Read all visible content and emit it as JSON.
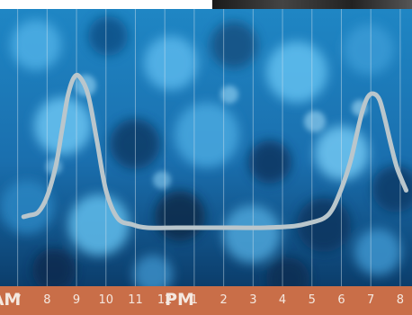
{
  "colors": {
    "background_top": "#1f86c4",
    "background_bottom": "#0b3d6b",
    "curve": "#b9c6cc",
    "gridline": "#d8e6ee",
    "axis_bar": "#c96e48",
    "axis_text": "#f4e8e0"
  },
  "chart_data": {
    "type": "line",
    "title": "",
    "xlabel": "",
    "ylabel": "",
    "grid": "vertical lines at each hour",
    "x_tick_labels": [
      "AM",
      "7",
      "8",
      "9",
      "10",
      "11",
      "12",
      "PM",
      "1",
      "2",
      "3",
      "4",
      "5",
      "6",
      "7",
      "8"
    ],
    "x_hours": [
      6.2,
      6.6,
      7.6,
      8.6,
      9.6,
      10.6,
      11.6,
      12.1,
      12.6,
      13.6,
      14.6,
      15.6,
      16.6,
      17.6,
      18.6,
      19.6
    ],
    "xlim": [
      6,
      20
    ],
    "ylim": [
      0,
      1
    ],
    "series": [
      {
        "x": [
          6.8,
          7.0,
          7.3,
          7.6,
          7.9,
          8.1,
          8.3,
          8.5,
          8.7,
          9.0,
          9.3,
          9.6,
          10.0,
          10.5,
          11.0,
          12.0,
          13.0,
          14.0,
          15.0,
          16.0,
          16.5,
          17.0,
          17.3,
          17.6,
          17.9,
          18.1,
          18.3,
          18.5,
          18.7,
          18.9,
          19.1,
          19.3,
          19.5,
          19.8
        ],
        "y": [
          0.07,
          0.08,
          0.1,
          0.2,
          0.4,
          0.62,
          0.84,
          0.96,
          0.97,
          0.85,
          0.55,
          0.24,
          0.06,
          0.02,
          0.0,
          0.0,
          0.0,
          0.0,
          0.0,
          0.01,
          0.03,
          0.06,
          0.12,
          0.25,
          0.42,
          0.58,
          0.74,
          0.84,
          0.86,
          0.82,
          0.68,
          0.52,
          0.38,
          0.24
        ]
      }
    ]
  }
}
